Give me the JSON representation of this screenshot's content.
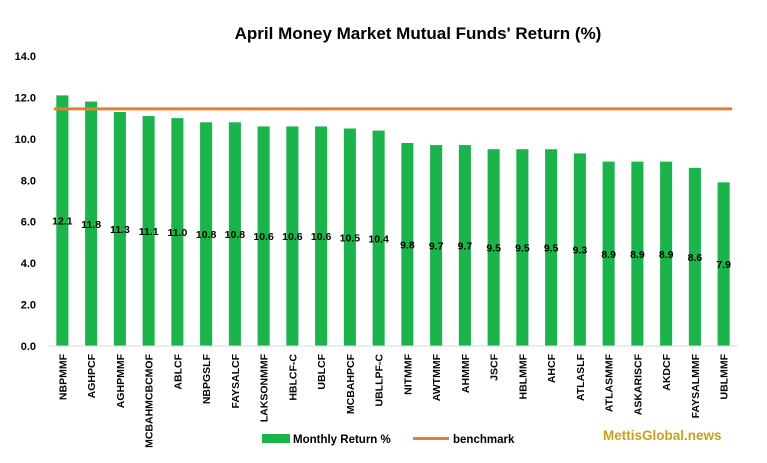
{
  "chart_data": {
    "type": "bar",
    "title": "April Money Market Mutual Funds' Return (%)",
    "xlabel": "",
    "ylabel": "",
    "ylim": [
      0,
      14
    ],
    "yticks": [
      "0.0",
      "2.0",
      "4.0",
      "6.0",
      "8.0",
      "10.0",
      "12.0",
      "14.0"
    ],
    "categories": [
      "NBPMMF",
      "AGHPCF",
      "AGHPMMF",
      "MCBAHMCBCMOF",
      "ABLCF",
      "NBPGSLF",
      "FAYSALCF",
      "LAKSONMMF",
      "HBLCF-C",
      "UBLCF",
      "MCBAHPCF",
      "UBLLPF-C",
      "NITMMF",
      "AWTMMF",
      "AHMMF",
      "JSCF",
      "HBLMMF",
      "AHCF",
      "ATLASLF",
      "ATLASMMF",
      "ASKARISCF",
      "AKDCF",
      "FAYSALMMF",
      "UBLMMF"
    ],
    "series": [
      {
        "name": "Monthly Return %",
        "type": "bar",
        "color": "#1BB44A",
        "values": [
          12.1,
          11.8,
          11.3,
          11.1,
          11.0,
          10.8,
          10.8,
          10.6,
          10.6,
          10.6,
          10.5,
          10.4,
          9.8,
          9.7,
          9.7,
          9.5,
          9.5,
          9.5,
          9.3,
          8.9,
          8.9,
          8.9,
          8.6,
          7.9
        ],
        "labels": [
          "12.1",
          "11.8",
          "11.3",
          "11.1",
          "11.0",
          "10.8",
          "10.8",
          "10.6",
          "10.6",
          "10.6",
          "10.5",
          "10.4",
          "9.8",
          "9.7",
          "9.7",
          "9.5",
          "9.5",
          "9.5",
          "9.3",
          "8.9",
          "8.9",
          "8.9",
          "8.6",
          "7.9"
        ]
      },
      {
        "name": "benchmark",
        "type": "line",
        "color": "#E67E30",
        "value": 11.45
      }
    ],
    "grid": false,
    "legend": "bottom"
  },
  "watermark": {
    "text": "MettisGlobal.news",
    "color": "#C9A01C"
  }
}
